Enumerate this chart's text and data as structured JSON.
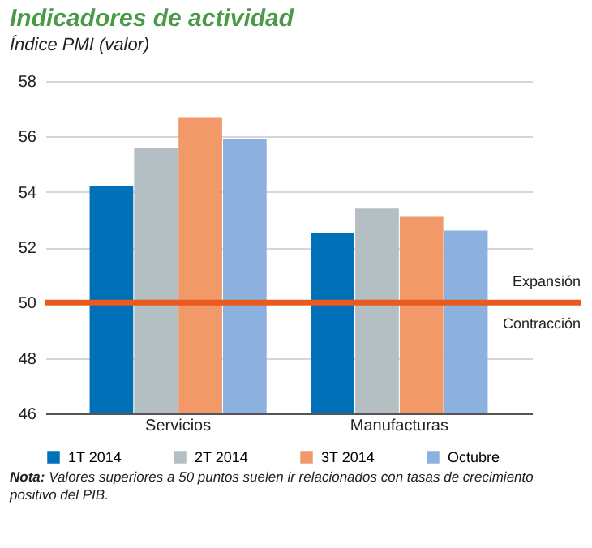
{
  "chart_data": {
    "type": "bar",
    "title": "Indicadores de actividad",
    "subtitle": "Índice PMI (valor)",
    "categories": [
      "Servicios",
      "Manufacturas"
    ],
    "series": [
      {
        "name": "1T 2014",
        "color": "#0070b8",
        "values": [
          54.2,
          52.5
        ]
      },
      {
        "name": "2T 2014",
        "color": "#b3bfc3",
        "values": [
          55.6,
          53.4
        ]
      },
      {
        "name": "3T 2014",
        "color": "#f2996a",
        "values": [
          56.7,
          53.1
        ]
      },
      {
        "name": "Octubre",
        "color": "#8db1de",
        "values": [
          55.9,
          52.6
        ]
      }
    ],
    "ylim": [
      46,
      58
    ],
    "yticks": [
      46,
      48,
      50,
      52,
      54,
      56,
      58
    ],
    "grid": "y",
    "legend": "bottom",
    "ref_lines": [
      {
        "axis": "y",
        "value": 50,
        "color": "#e95a1f"
      }
    ],
    "annotations": [
      "Expansión",
      "Contracción",
      "Nota: Valores superiores a 50 puntos suelen ir relacionados con tasas de crecimiento positivo del PIB."
    ]
  }
}
